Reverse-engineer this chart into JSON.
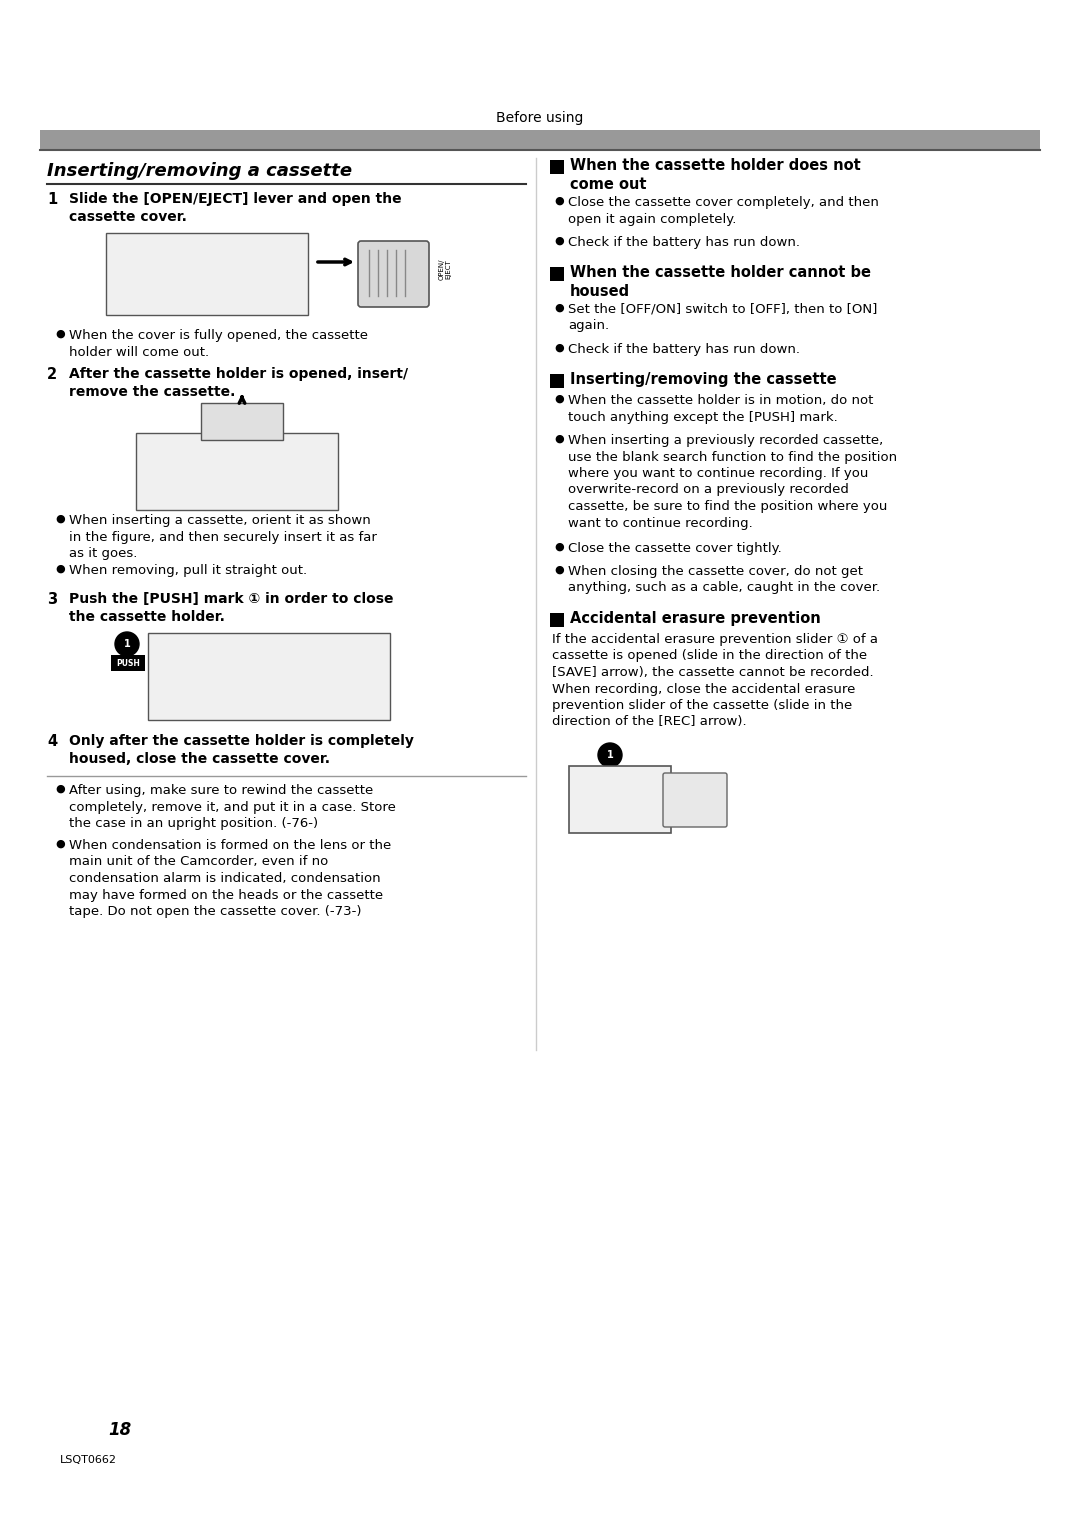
{
  "page_title": "Before using",
  "background_color": "#ffffff",
  "section_left_title": "Inserting/removing a cassette",
  "page_number": "18",
  "page_code": "LSQT0662",
  "right_sections": [
    {
      "heading": "When the cassette holder does not\ncome out",
      "bullets": [
        "Close the cassette cover completely, and then\nopen it again completely.",
        "Check if the battery has run down."
      ]
    },
    {
      "heading": "When the cassette holder cannot be\nhoused",
      "bullets": [
        "Set the [OFF/ON] switch to [OFF], then to [ON]\nagain.",
        "Check if the battery has run down."
      ]
    },
    {
      "heading": "Inserting/removing the cassette",
      "bullets": [
        "When the cassette holder is in motion, do not\ntouch anything except the [PUSH] mark.",
        "When inserting a previously recorded cassette,\nuse the blank search function to find the position\nwhere you want to continue recording. If you\noverwrite-record on a previously recorded\ncassette, be sure to find the position where you\nwant to continue recording.",
        "Close the cassette cover tightly.",
        "When closing the cassette cover, do not get\nanything, such as a cable, caught in the cover."
      ]
    },
    {
      "heading": "Accidental erasure prevention",
      "body": "If the accidental erasure prevention slider ① of a\ncassette is opened (slide in the direction of the\n[SAVE] arrow), the cassette cannot be recorded.\nWhen recording, close the accidental erasure\nprevention slider of the cassette (slide in the\ndirection of the [REC] arrow)."
    }
  ],
  "left_steps": [
    {
      "num": "1",
      "bold_text": "Slide the [OPEN/EJECT] lever and open the\ncassette cover.",
      "has_image": true,
      "bullets": [
        "When the cover is fully opened, the cassette\nholder will come out."
      ]
    },
    {
      "num": "2",
      "bold_text": "After the cassette holder is opened, insert/\nremove the cassette.",
      "has_image": true,
      "bullets": [
        "When inserting a cassette, orient it as shown\nin the figure, and then securely insert it as far\nas it goes.",
        "When removing, pull it straight out."
      ]
    },
    {
      "num": "3",
      "bold_text": "Push the [PUSH] mark ① in order to close\nthe cassette holder.",
      "has_image": true,
      "bullets": []
    },
    {
      "num": "4",
      "bold_text": "Only after the cassette holder is completely\nhoused, close the cassette cover.",
      "has_image": false,
      "has_separator": true,
      "bullets": [
        "After using, make sure to rewind the cassette\ncompletely, remove it, and put it in a case. Store\nthe case in an upright position. (-76-)",
        "When condensation is formed on the lens or the\nmain unit of the Camcorder, even if no\ncondensation alarm is indicated, condensation\nmay have formed on the heads or the cassette\ntape. Do not open the cassette cover. (-73-)"
      ]
    }
  ]
}
